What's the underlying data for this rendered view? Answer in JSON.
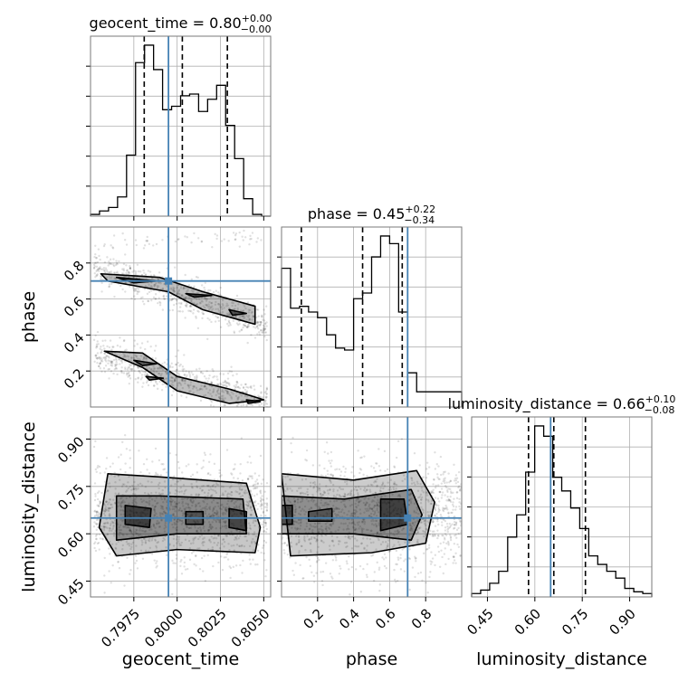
{
  "chart_data": {
    "type": "corner",
    "parameters": [
      "geocent_time",
      "phase",
      "luminosity_distance"
    ],
    "truths": {
      "geocent_time": 0.7995,
      "phase": 0.7,
      "luminosity_distance": 0.65
    },
    "panel_titles": [
      {
        "param": "geocent_time",
        "prefix": "geocent_time = 0.80",
        "plus": "+0.00",
        "minus": "−0.00"
      },
      {
        "param": "phase",
        "prefix": "phase = 0.45",
        "plus": "+0.22",
        "minus": "−0.34"
      },
      {
        "param": "luminosity_distance",
        "prefix": "luminosity_distance = 0.66",
        "plus": "+0.10",
        "minus": "−0.08"
      }
    ],
    "axes": {
      "geocent_time": {
        "label": "geocent_time",
        "range": [
          0.795,
          0.8054
        ],
        "ticks": [
          0.7975,
          0.8,
          0.8025,
          0.805
        ],
        "tick_labels": [
          "0.7975",
          "0.8000",
          "0.8025",
          "0.8050"
        ]
      },
      "phase": {
        "label": "phase",
        "range": [
          0.0,
          1.0
        ],
        "ticks": [
          0.2,
          0.4,
          0.6,
          0.8
        ],
        "tick_labels": [
          "0.2",
          "0.4",
          "0.6",
          "0.8"
        ]
      },
      "luminosity_distance": {
        "label": "luminosity_distance",
        "range": [
          0.4,
          0.97
        ],
        "ticks": [
          0.45,
          0.6,
          0.75,
          0.9
        ],
        "tick_labels": [
          "0.45",
          "0.60",
          "0.75",
          "0.90"
        ]
      }
    },
    "quantiles": {
      "geocent_time": [
        0.7981,
        0.8003,
        0.8029
      ],
      "phase": [
        0.11,
        0.45,
        0.67
      ],
      "luminosity_distance": [
        0.58,
        0.66,
        0.76
      ]
    },
    "histograms": {
      "geocent_time": {
        "edges": [
          0.795,
          0.79552,
          0.79604,
          0.79656,
          0.79708,
          0.7976,
          0.79812,
          0.79864,
          0.79916,
          0.79968,
          0.8002,
          0.80072,
          0.80124,
          0.80176,
          0.80228,
          0.8028,
          0.80332,
          0.80384,
          0.80436,
          0.80488,
          0.8054
        ],
        "counts": [
          1,
          3,
          5,
          11,
          35,
          88,
          98,
          84,
          61,
          63,
          69,
          70,
          60,
          67,
          75,
          52,
          33,
          10,
          1,
          0
        ]
      },
      "phase": {
        "edges": [
          0,
          0.05,
          0.1,
          0.15,
          0.2,
          0.25,
          0.3,
          0.35,
          0.4,
          0.45,
          0.5,
          0.55,
          0.6,
          0.65,
          0.7,
          0.75,
          0.8,
          0.85,
          0.9,
          0.95,
          1.0
        ],
        "counts": [
          73,
          52,
          53,
          50,
          47,
          38,
          31,
          30,
          57,
          60,
          79,
          90,
          86,
          50,
          18,
          8,
          8,
          8,
          8,
          8
        ]
      },
      "luminosity_distance": {
        "edges": [
          0.4,
          0.4285,
          0.457,
          0.4855,
          0.514,
          0.5425,
          0.571,
          0.5995,
          0.628,
          0.6565,
          0.685,
          0.7135,
          0.742,
          0.7705,
          0.799,
          0.8275,
          0.856,
          0.8845,
          0.913,
          0.9415,
          0.97
        ],
        "counts": [
          2,
          4,
          8,
          15,
          35,
          48,
          73,
          100,
          94,
          70,
          62,
          52,
          40,
          24,
          19,
          15,
          11,
          5,
          3,
          2
        ]
      }
    },
    "grid": true
  }
}
